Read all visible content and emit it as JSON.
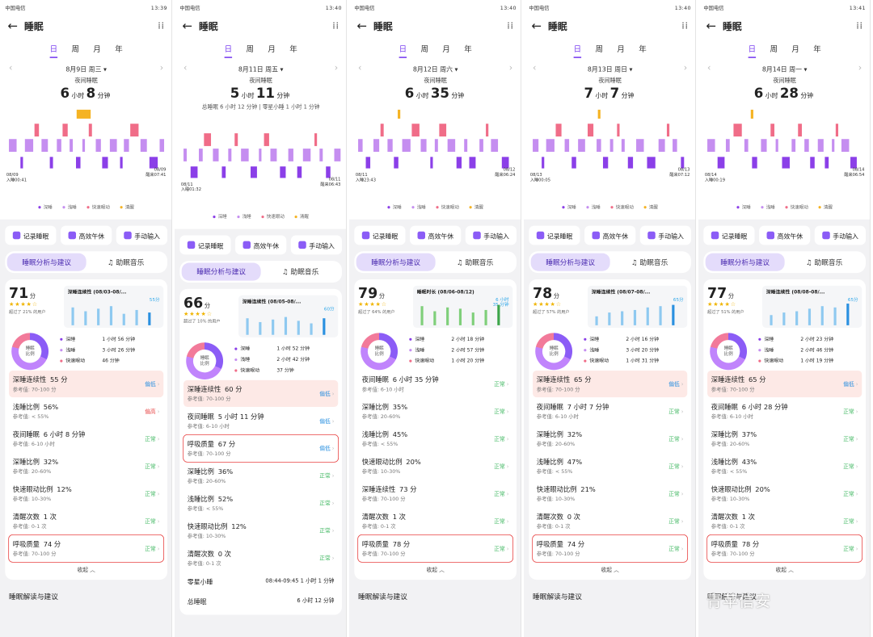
{
  "panels": [
    {
      "status": {
        "left": "中国电信",
        "right": "13:39"
      },
      "title": "睡眠",
      "tabs": [
        "日",
        "周",
        "月",
        "年"
      ],
      "date": "8月9日 周三",
      "summary_label": "夜间睡眠",
      "hours": "6",
      "minutes": "8",
      "unit_h": "小时",
      "unit_m": "分钟",
      "extra": "",
      "left_cap": "08/09\n入睡00:41",
      "right_cap": "08/09\n醒来07:41",
      "legend": [
        "深睡",
        "浅睡",
        "快速眼动",
        "清醒"
      ],
      "actions": [
        "记录睡眠",
        "高效午休",
        "手动输入"
      ],
      "segments": [
        "睡眠分析与建议",
        "助眠音乐"
      ],
      "score": "71",
      "score_unit": "分",
      "beat": "超过了 21% 的用户",
      "mini_title": "深睡连续性 (08/03-08/...",
      "mini_value": "55分",
      "ring_label": "睡眠\n比例",
      "stats": [
        [
          "深睡",
          "1 小时 56 分钟"
        ],
        [
          "浅睡",
          "3 小时 26 分钟"
        ],
        [
          "快速眼动",
          "46 分钟"
        ]
      ],
      "rows": [
        {
          "name": "深睡连续性",
          "val": "55 分",
          "ref": "参考值: 70-100 分",
          "status": "偏低",
          "cls": "low",
          "hl": true,
          "box": false
        },
        {
          "name": "浅睡比例",
          "val": "56%",
          "ref": "参考值: < 55%",
          "status": "偏高",
          "cls": "hi",
          "hl": false,
          "box": false
        },
        {
          "name": "夜间睡眠",
          "val": "6 小时 8 分钟",
          "ref": "参考值: 6-10 小时",
          "status": "正常",
          "cls": "ok",
          "hl": false,
          "box": false
        },
        {
          "name": "深睡比例",
          "val": "32%",
          "ref": "参考值: 20-60%",
          "status": "正常",
          "cls": "ok",
          "hl": false,
          "box": false
        },
        {
          "name": "快速眼动比例",
          "val": "12%",
          "ref": "参考值: 10-30%",
          "status": "正常",
          "cls": "ok",
          "hl": false,
          "box": false
        },
        {
          "name": "清醒次数",
          "val": "1 次",
          "ref": "参考值: 0-1 次",
          "status": "正常",
          "cls": "ok",
          "hl": false,
          "box": false
        },
        {
          "name": "呼吸质量",
          "val": "74 分",
          "ref": "参考值: 70-100 分",
          "status": "正常",
          "cls": "ok",
          "hl": false,
          "box": true
        }
      ],
      "plain": [],
      "fold": "收起 ︿",
      "section": "睡眠解读与建议"
    },
    {
      "status": {
        "left": "中国电信",
        "right": "13:40"
      },
      "title": "睡眠",
      "tabs": [
        "日",
        "周",
        "月",
        "年"
      ],
      "date": "8月11日 周五",
      "summary_label": "夜间睡眠",
      "hours": "5",
      "minutes": "11",
      "unit_h": "小时",
      "unit_m": "分钟",
      "extra": "总睡眠 6 小时 12 分钟 | 零星小睡 1 小时 1 分钟",
      "left_cap": "08/11\n入睡01:32",
      "right_cap": "08/11\n醒来06:43",
      "legend": [
        "深睡",
        "浅睡",
        "快速眼动",
        "清醒"
      ],
      "actions": [
        "记录睡眠",
        "高效午休",
        "手动输入"
      ],
      "segments": [
        "睡眠分析与建议",
        "助眠音乐"
      ],
      "score": "66",
      "score_unit": "分",
      "beat": "超过了 10% 的用户",
      "mini_title": "深睡连续性 (08/05-08/...",
      "mini_value": "60分",
      "ring_label": "睡眠\n比例",
      "stats": [
        [
          "深睡",
          "1 小时 52 分钟"
        ],
        [
          "浅睡",
          "2 小时 42 分钟"
        ],
        [
          "快速眼动",
          "37 分钟"
        ]
      ],
      "rows": [
        {
          "name": "深睡连续性",
          "val": "60 分",
          "ref": "参考值: 70-100 分",
          "status": "偏低",
          "cls": "low",
          "hl": true,
          "box": false
        },
        {
          "name": "夜间睡眠",
          "val": "5 小时 11 分钟",
          "ref": "参考值: 6-10 小时",
          "status": "偏低",
          "cls": "low",
          "hl": false,
          "box": false
        },
        {
          "name": "呼吸质量",
          "val": "67 分",
          "ref": "参考值: 70-100 分",
          "status": "偏低",
          "cls": "low",
          "hl": false,
          "box": true
        },
        {
          "name": "深睡比例",
          "val": "36%",
          "ref": "参考值: 20-60%",
          "status": "正常",
          "cls": "ok",
          "hl": false,
          "box": false
        },
        {
          "name": "浅睡比例",
          "val": "52%",
          "ref": "参考值: < 55%",
          "status": "正常",
          "cls": "ok",
          "hl": false,
          "box": false
        },
        {
          "name": "快速眼动比例",
          "val": "12%",
          "ref": "参考值: 10-30%",
          "status": "正常",
          "cls": "ok",
          "hl": false,
          "box": false
        },
        {
          "name": "清醒次数",
          "val": "0 次",
          "ref": "参考值: 0-1 次",
          "status": "正常",
          "cls": "ok",
          "hl": false,
          "box": false
        }
      ],
      "plain": [
        [
          "零星小睡",
          "08:44-09:45  1 小时 1 分钟"
        ],
        [
          "总睡眠",
          "6 小时 12 分钟"
        ]
      ],
      "fold": "",
      "section": ""
    },
    {
      "status": {
        "left": "中国电信",
        "right": "13:40"
      },
      "title": "睡眠",
      "tabs": [
        "日",
        "周",
        "月",
        "年"
      ],
      "date": "8月12日 周六",
      "summary_label": "夜间睡眠",
      "hours": "6",
      "minutes": "35",
      "unit_h": "小时",
      "unit_m": "分钟",
      "extra": "",
      "left_cap": "08/11\n入睡23:43",
      "right_cap": "08/12\n醒来06:24",
      "legend": [
        "深睡",
        "浅睡",
        "快速眼动",
        "清醒"
      ],
      "actions": [
        "记录睡眠",
        "高效午休",
        "手动输入"
      ],
      "segments": [
        "睡眠分析与建议",
        "助眠音乐"
      ],
      "score": "79",
      "score_unit": "分",
      "beat": "超过了 64% 的用户",
      "mini_title": "睡眠时长 (08/06-08/12)",
      "mini_value": "6 小时\n35 分钟",
      "ring_label": "睡眠\n比例",
      "stats": [
        [
          "深睡",
          "2 小时 18 分钟"
        ],
        [
          "浅睡",
          "2 小时 57 分钟"
        ],
        [
          "快速眼动",
          "1 小时 20 分钟"
        ]
      ],
      "rows": [
        {
          "name": "夜间睡眠",
          "val": "6 小时 35 分钟",
          "ref": "参考值: 6-10 小时",
          "status": "正常",
          "cls": "ok",
          "hl": false,
          "box": false
        },
        {
          "name": "深睡比例",
          "val": "35%",
          "ref": "参考值: 20-60%",
          "status": "正常",
          "cls": "ok",
          "hl": false,
          "box": false
        },
        {
          "name": "浅睡比例",
          "val": "45%",
          "ref": "参考值: < 55%",
          "status": "正常",
          "cls": "ok",
          "hl": false,
          "box": false
        },
        {
          "name": "快速眼动比例",
          "val": "20%",
          "ref": "参考值: 10-30%",
          "status": "正常",
          "cls": "ok",
          "hl": false,
          "box": false
        },
        {
          "name": "深睡连续性",
          "val": "73 分",
          "ref": "参考值: 70-100 分",
          "status": "正常",
          "cls": "ok",
          "hl": false,
          "box": false
        },
        {
          "name": "清醒次数",
          "val": "1 次",
          "ref": "参考值: 0-1 次",
          "status": "正常",
          "cls": "ok",
          "hl": false,
          "box": false
        },
        {
          "name": "呼吸质量",
          "val": "78 分",
          "ref": "参考值: 70-100 分",
          "status": "正常",
          "cls": "ok",
          "hl": false,
          "box": true
        }
      ],
      "plain": [],
      "fold": "收起 ︿",
      "section": "睡眠解读与建议"
    },
    {
      "status": {
        "left": "中国电信",
        "right": "13:40"
      },
      "title": "睡眠",
      "tabs": [
        "日",
        "周",
        "月",
        "年"
      ],
      "date": "8月13日 周日",
      "summary_label": "夜间睡眠",
      "hours": "7",
      "minutes": "7",
      "unit_h": "小时",
      "unit_m": "分钟",
      "extra": "",
      "left_cap": "08/13\n入睡00:05",
      "right_cap": "08/13\n醒来07:12",
      "legend": [
        "深睡",
        "浅睡",
        "快速眼动",
        "清醒"
      ],
      "actions": [
        "记录睡眠",
        "高效午休",
        "手动输入"
      ],
      "segments": [
        "睡眠分析与建议",
        "助眠音乐"
      ],
      "score": "78",
      "score_unit": "分",
      "beat": "超过了 57% 的用户",
      "mini_title": "深睡连续性 (08/07-08/...",
      "mini_value": "65分",
      "ring_label": "睡眠\n比例",
      "stats": [
        [
          "深睡",
          "2 小时 16 分钟"
        ],
        [
          "浅睡",
          "3 小时 20 分钟"
        ],
        [
          "快速眼动",
          "1 小时 31 分钟"
        ]
      ],
      "rows": [
        {
          "name": "深睡连续性",
          "val": "65 分",
          "ref": "参考值: 70-100 分",
          "status": "偏低",
          "cls": "low",
          "hl": true,
          "box": false
        },
        {
          "name": "夜间睡眠",
          "val": "7 小时 7 分钟",
          "ref": "参考值: 6-10 小时",
          "status": "正常",
          "cls": "ok",
          "hl": false,
          "box": false
        },
        {
          "name": "深睡比例",
          "val": "32%",
          "ref": "参考值: 20-60%",
          "status": "正常",
          "cls": "ok",
          "hl": false,
          "box": false
        },
        {
          "name": "浅睡比例",
          "val": "47%",
          "ref": "参考值: < 55%",
          "status": "正常",
          "cls": "ok",
          "hl": false,
          "box": false
        },
        {
          "name": "快速眼动比例",
          "val": "21%",
          "ref": "参考值: 10-30%",
          "status": "正常",
          "cls": "ok",
          "hl": false,
          "box": false
        },
        {
          "name": "清醒次数",
          "val": "0 次",
          "ref": "参考值: 0-1 次",
          "status": "正常",
          "cls": "ok",
          "hl": false,
          "box": false
        },
        {
          "name": "呼吸质量",
          "val": "74 分",
          "ref": "参考值: 70-100 分",
          "status": "正常",
          "cls": "ok",
          "hl": false,
          "box": true
        }
      ],
      "plain": [],
      "fold": "收起 ︿",
      "section": "睡眠解读与建议"
    },
    {
      "status": {
        "left": "中国电信",
        "right": "13:41"
      },
      "title": "睡眠",
      "tabs": [
        "日",
        "周",
        "月",
        "年"
      ],
      "date": "8月14日 周一",
      "summary_label": "夜间睡眠",
      "hours": "6",
      "minutes": "28",
      "unit_h": "小时",
      "unit_m": "分钟",
      "extra": "",
      "left_cap": "08/14\n入睡00:19",
      "right_cap": "08/14\n醒来06:54",
      "legend": [
        "深睡",
        "浅睡",
        "快速眼动",
        "清醒"
      ],
      "actions": [
        "记录睡眠",
        "高效午休",
        "手动输入"
      ],
      "segments": [
        "睡眠分析与建议",
        "助眠音乐"
      ],
      "score": "77",
      "score_unit": "分",
      "beat": "超过了 51% 的用户",
      "mini_title": "深睡连续性 (08/08-08/...",
      "mini_value": "65分",
      "ring_label": "睡眠\n比例",
      "stats": [
        [
          "深睡",
          "2 小时 23 分钟"
        ],
        [
          "浅睡",
          "2 小时 46 分钟"
        ],
        [
          "快速眼动",
          "1 小时 19 分钟"
        ]
      ],
      "rows": [
        {
          "name": "深睡连续性",
          "val": "65 分",
          "ref": "参考值: 70-100 分",
          "status": "偏低",
          "cls": "low",
          "hl": true,
          "box": false
        },
        {
          "name": "夜间睡眠",
          "val": "6 小时 28 分钟",
          "ref": "参考值: 6-10 小时",
          "status": "正常",
          "cls": "ok",
          "hl": false,
          "box": false
        },
        {
          "name": "深睡比例",
          "val": "37%",
          "ref": "参考值: 20-60%",
          "status": "正常",
          "cls": "ok",
          "hl": false,
          "box": false
        },
        {
          "name": "浅睡比例",
          "val": "43%",
          "ref": "参考值: < 55%",
          "status": "正常",
          "cls": "ok",
          "hl": false,
          "box": false
        },
        {
          "name": "快速眼动比例",
          "val": "20%",
          "ref": "参考值: 10-30%",
          "status": "正常",
          "cls": "ok",
          "hl": false,
          "box": false
        },
        {
          "name": "清醒次数",
          "val": "1 次",
          "ref": "参考值: 0-1 次",
          "status": "正常",
          "cls": "ok",
          "hl": false,
          "box": false
        },
        {
          "name": "呼吸质量",
          "val": "78 分",
          "ref": "参考值: 70-100 分",
          "status": "正常",
          "cls": "ok",
          "hl": false,
          "box": true
        }
      ],
      "plain": [],
      "fold": "收起 ︿",
      "section": "睡眠解读与建议"
    }
  ],
  "colors": {
    "deep": "#8b3fe8",
    "light": "#c58ef0",
    "rem": "#f06d88",
    "awake": "#f5b323",
    "accent": "#7a3ff0"
  },
  "watermark": "青苹信安"
}
